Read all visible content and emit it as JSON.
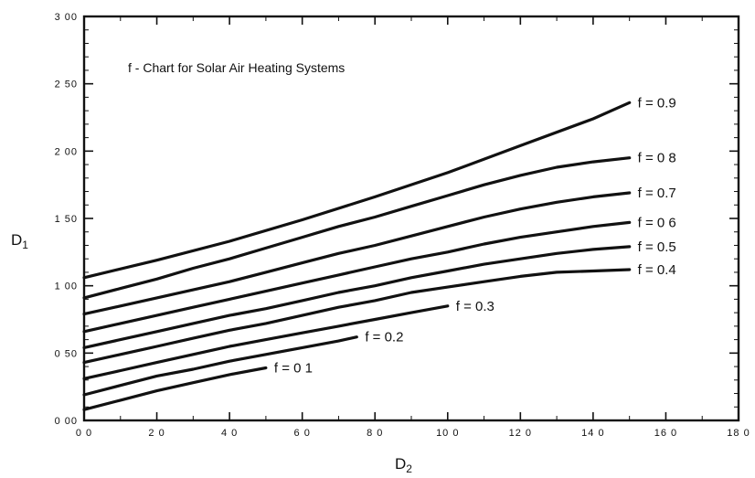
{
  "chart_data": {
    "type": "line",
    "title": "f - Chart for Solar Air Heating Systems",
    "xlabel": "D2",
    "ylabel": "D1",
    "xlim": [
      0,
      18
    ],
    "ylim": [
      0,
      3
    ],
    "x_ticks": [
      "0 0",
      "2 0",
      "4 0",
      "6 0",
      "8 0",
      "10 0",
      "12 0",
      "14 0",
      "16 0",
      "18 0"
    ],
    "y_ticks": [
      "0 00",
      "0 50",
      "1 00",
      "1 50",
      "2 00",
      "2 50",
      "3 00"
    ],
    "grid": false,
    "legend": "none",
    "series": [
      {
        "name": "f = 0 1",
        "x": [
          0,
          1,
          2,
          3,
          4,
          5
        ],
        "y": [
          0.08,
          0.15,
          0.22,
          0.28,
          0.34,
          0.39
        ]
      },
      {
        "name": "f = 0.2",
        "x": [
          0,
          1,
          2,
          3,
          4,
          5,
          6,
          7,
          7.5
        ],
        "y": [
          0.19,
          0.26,
          0.33,
          0.38,
          0.44,
          0.49,
          0.54,
          0.59,
          0.62
        ]
      },
      {
        "name": "f = 0.3",
        "x": [
          0,
          1,
          2,
          3,
          4,
          5,
          6,
          7,
          8,
          9,
          10
        ],
        "y": [
          0.31,
          0.37,
          0.43,
          0.49,
          0.55,
          0.6,
          0.65,
          0.7,
          0.75,
          0.8,
          0.85
        ]
      },
      {
        "name": "f = 0.4",
        "x": [
          0,
          1,
          2,
          3,
          4,
          5,
          6,
          7,
          8,
          9,
          10,
          11,
          12,
          13,
          14,
          15
        ],
        "y": [
          0.43,
          0.49,
          0.55,
          0.61,
          0.67,
          0.72,
          0.78,
          0.84,
          0.89,
          0.95,
          0.99,
          1.03,
          1.07,
          1.1,
          1.11,
          1.12
        ]
      },
      {
        "name": "f = 0.5",
        "x": [
          0,
          1,
          2,
          3,
          4,
          5,
          6,
          7,
          8,
          9,
          10,
          11,
          12,
          13,
          14,
          15
        ],
        "y": [
          0.54,
          0.6,
          0.66,
          0.72,
          0.78,
          0.83,
          0.89,
          0.95,
          1.0,
          1.06,
          1.11,
          1.16,
          1.2,
          1.24,
          1.27,
          1.29
        ]
      },
      {
        "name": "f = 0 6",
        "x": [
          0,
          1,
          2,
          3,
          4,
          5,
          6,
          7,
          8,
          9,
          10,
          11,
          12,
          13,
          14,
          15
        ],
        "y": [
          0.66,
          0.72,
          0.78,
          0.84,
          0.9,
          0.96,
          1.02,
          1.08,
          1.14,
          1.2,
          1.25,
          1.31,
          1.36,
          1.4,
          1.44,
          1.47
        ]
      },
      {
        "name": "f = 0.7",
        "x": [
          0,
          1,
          2,
          3,
          4,
          5,
          6,
          7,
          8,
          9,
          10,
          11,
          12,
          13,
          14,
          15
        ],
        "y": [
          0.79,
          0.85,
          0.91,
          0.97,
          1.03,
          1.1,
          1.17,
          1.24,
          1.3,
          1.37,
          1.44,
          1.51,
          1.57,
          1.62,
          1.66,
          1.69
        ]
      },
      {
        "name": "f = 0 8",
        "x": [
          0,
          1,
          2,
          3,
          4,
          5,
          6,
          7,
          8,
          9,
          10,
          11,
          12,
          13,
          14,
          15
        ],
        "y": [
          0.91,
          0.98,
          1.05,
          1.13,
          1.2,
          1.28,
          1.36,
          1.44,
          1.51,
          1.59,
          1.67,
          1.75,
          1.82,
          1.88,
          1.92,
          1.95
        ]
      },
      {
        "name": "f = 0.9",
        "x": [
          0,
          2,
          4,
          6,
          8,
          10,
          12,
          14,
          15
        ],
        "y": [
          1.06,
          1.19,
          1.33,
          1.49,
          1.66,
          1.84,
          2.04,
          2.24,
          2.36
        ]
      }
    ]
  }
}
